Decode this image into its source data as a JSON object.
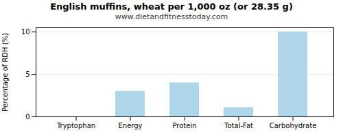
{
  "chart_data": {
    "type": "bar",
    "title": "English muffins, wheat per 1,000 oz (or 28.35 g)",
    "subtitle": "www.dietandfitnesstoday.com",
    "categories": [
      "Tryptophan",
      "Energy",
      "Protein",
      "Total-Fat",
      "Carbohydrate"
    ],
    "values": [
      0.0,
      3.0,
      4.0,
      1.1,
      10.0
    ],
    "color": "#aed6e8",
    "ylabel": "Percentage of RDH (%)",
    "ylim": [
      0,
      10.5
    ],
    "yticks": [
      0,
      5,
      10
    ],
    "grid": true
  }
}
